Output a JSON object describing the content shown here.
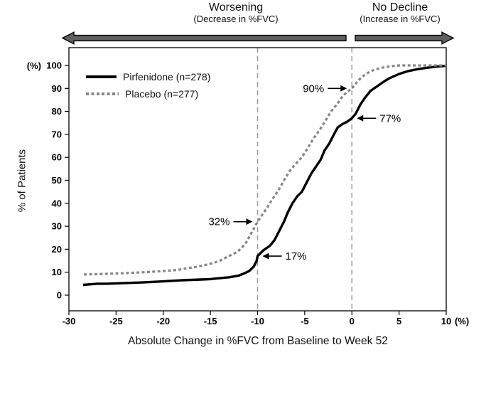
{
  "header": {
    "left": {
      "title": "Worsening",
      "subtitle": "(Decrease in %FVC)",
      "arrow_icon": "thick-left-arrow"
    },
    "right": {
      "title": "No Decline",
      "subtitle": "(Increase in %FVC)",
      "arrow_icon": "thick-right-arrow"
    }
  },
  "legend": [
    {
      "label": "Pirfenidone (n=278)",
      "style": "solid",
      "color": "#000000"
    },
    {
      "label": "Placebo (n=277)",
      "style": "dotted",
      "color": "#858585"
    }
  ],
  "colors": {
    "series_pirfenidone": "#000000",
    "series_placebo": "#858585",
    "reference_line": "#999999",
    "big_arrow": "#5f5f5f",
    "plot_border": "#000000"
  },
  "chart_data": {
    "type": "line",
    "title": "",
    "xlabel": "Absolute Change in %FVC from Baseline to Week 52",
    "ylabel": "% of Patients",
    "x_unit_label": "(%)",
    "y_unit_label": "(%)",
    "xlim": [
      -30,
      10
    ],
    "ylim": [
      0,
      100
    ],
    "x_ticks": [
      -30,
      -25,
      -20,
      -15,
      -10,
      -5,
      0,
      5,
      10
    ],
    "y_ticks": [
      0,
      10,
      20,
      30,
      40,
      50,
      60,
      70,
      80,
      90,
      100
    ],
    "grid": false,
    "legend_position": "top-left-inside",
    "reference_lines_x": [
      -10,
      0
    ],
    "series": [
      {
        "name": "Pirfenidone (n=278)",
        "style": "solid",
        "color": "#000000",
        "width": 3.4,
        "points": [
          [
            -28.5,
            4.5
          ],
          [
            -27,
            5
          ],
          [
            -26,
            5
          ],
          [
            -24,
            5.3
          ],
          [
            -22,
            5.6
          ],
          [
            -20,
            6
          ],
          [
            -18,
            6.5
          ],
          [
            -16,
            6.8
          ],
          [
            -15,
            7
          ],
          [
            -14.3,
            7.3
          ],
          [
            -13,
            7.8
          ],
          [
            -12,
            8.5
          ],
          [
            -11.4,
            9.5
          ],
          [
            -10.9,
            10.5
          ],
          [
            -10.4,
            12.5
          ],
          [
            -10.1,
            15
          ],
          [
            -10,
            17
          ],
          [
            -9.4,
            19.5
          ],
          [
            -8.7,
            21.5
          ],
          [
            -8.2,
            24
          ],
          [
            -7.7,
            28
          ],
          [
            -7.2,
            32
          ],
          [
            -6.8,
            36
          ],
          [
            -6.3,
            40
          ],
          [
            -5.8,
            43
          ],
          [
            -5.3,
            45
          ],
          [
            -4.8,
            49
          ],
          [
            -4.3,
            53
          ],
          [
            -3.8,
            56
          ],
          [
            -3.3,
            59
          ],
          [
            -2.9,
            63
          ],
          [
            -2.4,
            66
          ],
          [
            -1.9,
            70
          ],
          [
            -1.5,
            73
          ],
          [
            -1,
            74.5
          ],
          [
            -0.5,
            75.5
          ],
          [
            0,
            77
          ],
          [
            0.4,
            79
          ],
          [
            0.9,
            83
          ],
          [
            1.4,
            86
          ],
          [
            2,
            89
          ],
          [
            2.7,
            91
          ],
          [
            3.4,
            93
          ],
          [
            4,
            94.5
          ],
          [
            5,
            96.3
          ],
          [
            6,
            97.6
          ],
          [
            7,
            98.4
          ],
          [
            8,
            99
          ],
          [
            9,
            99.5
          ],
          [
            10,
            99.8
          ]
        ]
      },
      {
        "name": "Placebo (n=277)",
        "style": "dotted",
        "color": "#858585",
        "width": 3.2,
        "points": [
          [
            -28.4,
            9
          ],
          [
            -26,
            9.3
          ],
          [
            -24,
            9.6
          ],
          [
            -22,
            10
          ],
          [
            -20,
            10.5
          ],
          [
            -18.5,
            11
          ],
          [
            -17.5,
            11.7
          ],
          [
            -16.5,
            12.3
          ],
          [
            -15.5,
            13.2
          ],
          [
            -14.7,
            14
          ],
          [
            -14,
            15
          ],
          [
            -13.3,
            16.5
          ],
          [
            -12.7,
            17.7
          ],
          [
            -12.2,
            18.7
          ],
          [
            -11.7,
            20.5
          ],
          [
            -11.2,
            23
          ],
          [
            -10.8,
            26
          ],
          [
            -10.4,
            29
          ],
          [
            -10,
            32
          ],
          [
            -9.5,
            35
          ],
          [
            -9,
            38
          ],
          [
            -8.4,
            42
          ],
          [
            -7.8,
            45.5
          ],
          [
            -7.2,
            50
          ],
          [
            -6.6,
            54
          ],
          [
            -6,
            57
          ],
          [
            -5.3,
            60
          ],
          [
            -4.7,
            64
          ],
          [
            -4.1,
            68
          ],
          [
            -3.4,
            72
          ],
          [
            -2.8,
            76
          ],
          [
            -2.2,
            80
          ],
          [
            -1.6,
            83
          ],
          [
            -1,
            86.5
          ],
          [
            -0.5,
            88.5
          ],
          [
            0,
            90
          ],
          [
            0.5,
            92.5
          ],
          [
            1,
            94.8
          ],
          [
            1.5,
            96.3
          ],
          [
            2,
            97.5
          ],
          [
            2.6,
            98.4
          ],
          [
            3.2,
            99
          ],
          [
            4,
            99.6
          ],
          [
            5,
            100
          ],
          [
            10,
            100
          ]
        ]
      }
    ],
    "annotations": [
      {
        "label": "90%",
        "x": 0,
        "y": 90,
        "side": "left",
        "series": "Placebo (n=277)"
      },
      {
        "label": "77%",
        "x": 0,
        "y": 77,
        "side": "right",
        "series": "Pirfenidone (n=278)"
      },
      {
        "label": "32%",
        "x": -10,
        "y": 32,
        "side": "left",
        "series": "Placebo (n=277)"
      },
      {
        "label": "17%",
        "x": -10,
        "y": 17,
        "side": "right",
        "series": "Pirfenidone (n=278)"
      }
    ]
  }
}
